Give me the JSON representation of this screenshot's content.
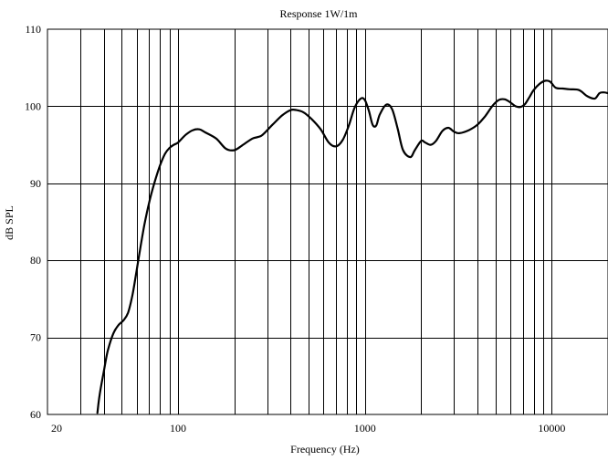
{
  "chart_data": {
    "type": "line",
    "title": "Response 1W/1m",
    "xlabel": "Frequency (Hz)",
    "ylabel": "dB SPL",
    "x_scale": "log",
    "xlim": [
      20,
      20000
    ],
    "ylim": [
      60,
      110
    ],
    "grid": true,
    "x_tick_labels": [
      {
        "value": 20,
        "label": "20"
      },
      {
        "value": 100,
        "label": "100"
      },
      {
        "value": 1000,
        "label": "1000"
      },
      {
        "value": 10000,
        "label": "10000"
      }
    ],
    "y_tick_labels": [
      {
        "value": 60,
        "label": "60"
      },
      {
        "value": 70,
        "label": "70"
      },
      {
        "value": 80,
        "label": "80"
      },
      {
        "value": 90,
        "label": "90"
      },
      {
        "value": 100,
        "label": "100"
      },
      {
        "value": 110,
        "label": "110"
      }
    ],
    "x_gridlines": [
      30,
      40,
      50,
      60,
      70,
      80,
      90,
      100,
      200,
      300,
      400,
      500,
      600,
      700,
      800,
      900,
      1000,
      2000,
      3000,
      4000,
      5000,
      6000,
      7000,
      8000,
      9000,
      10000
    ],
    "y_gridlines": [
      70,
      80,
      90,
      100
    ],
    "series": [
      {
        "x": [
          37,
          38,
          40,
          42,
          45,
          48,
          51,
          54,
          57,
          60,
          63,
          66,
          70,
          75,
          80,
          85,
          90,
          95,
          100,
          110,
          120,
          130,
          140,
          160,
          180,
          200,
          220,
          250,
          280,
          320,
          360,
          400,
          430,
          470,
          520,
          580,
          640,
          700,
          760,
          820,
          880,
          950,
          1000,
          1050,
          1100,
          1150,
          1200,
          1300,
          1400,
          1500,
          1600,
          1750,
          1850,
          2000,
          2100,
          2250,
          2400,
          2600,
          2800,
          3000,
          3200,
          3600,
          4000,
          4400,
          4800,
          5200,
          5600,
          6000,
          6400,
          6800,
          7200,
          7600,
          8000,
          8600,
          9200,
          9800,
          10500,
          11500,
          12500,
          14000,
          15500,
          17000,
          18000,
          19000,
          20000
        ],
        "values": [
          60.2,
          62.5,
          65.5,
          68.2,
          70.5,
          71.6,
          72.2,
          73.2,
          75.5,
          78.7,
          81.8,
          84.6,
          87.5,
          90.2,
          92.3,
          93.8,
          94.6,
          95.0,
          95.3,
          96.3,
          96.9,
          97.0,
          96.6,
          95.8,
          94.5,
          94.3,
          94.9,
          95.8,
          96.2,
          97.6,
          98.8,
          99.5,
          99.5,
          99.2,
          98.3,
          97.0,
          95.3,
          94.8,
          95.6,
          97.5,
          99.8,
          101.0,
          100.8,
          99.4,
          97.6,
          97.5,
          98.9,
          100.2,
          99.6,
          97.0,
          94.3,
          93.4,
          94.3,
          95.5,
          95.3,
          95.0,
          95.5,
          96.8,
          97.2,
          96.7,
          96.5,
          96.9,
          97.6,
          98.7,
          100.0,
          100.8,
          100.9,
          100.5,
          100.0,
          99.9,
          100.3,
          101.2,
          102.1,
          102.9,
          103.3,
          103.2,
          102.4,
          102.3,
          102.2,
          102.1,
          101.3,
          101.0,
          101.7,
          101.8,
          101.7
        ]
      }
    ]
  }
}
